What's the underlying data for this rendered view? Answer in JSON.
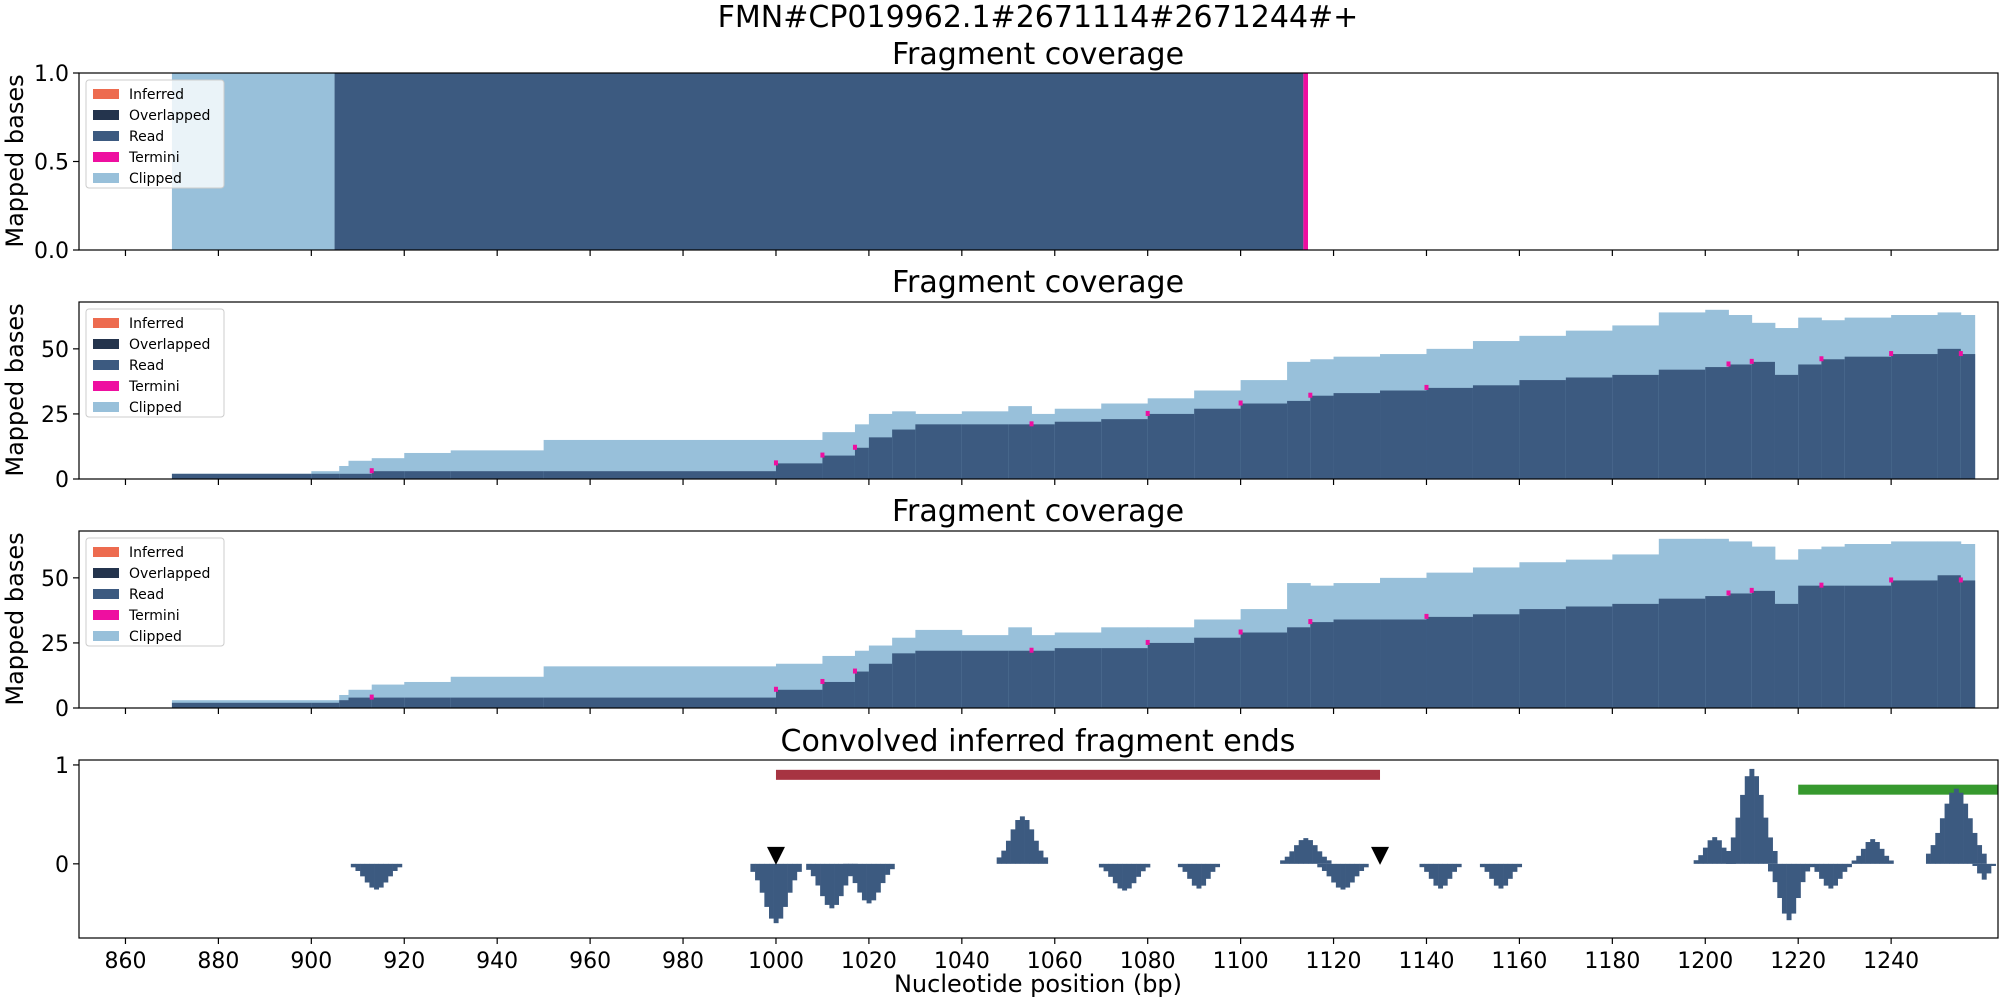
{
  "figure": {
    "suptitle": "FMN#CP019962.1#2671114#2671244#+"
  },
  "colors": {
    "Inferred": "#ed6b4f",
    "Overlapped": "#24344d",
    "Read": "#3c5a80",
    "Termini": "#ee0fa0",
    "Clipped": "#98c0da",
    "fragment_bar": "#a73442",
    "window_bar": "#36992e",
    "ends_bars": "#3c5a80",
    "marker": "#000000"
  },
  "chart_data": [
    {
      "type": "area",
      "title": "Fragment coverage",
      "ylabel": "Mapped bases",
      "xlim": [
        850,
        1263
      ],
      "ylim": [
        0,
        1.0
      ],
      "yticks": [
        "0.0",
        "0.5",
        "1.0"
      ],
      "ytick_values": [
        0,
        0.5,
        1.0
      ],
      "legend": [
        "Inferred",
        "Overlapped",
        "Read",
        "Termini",
        "Clipped"
      ],
      "legend_position": "upper-left",
      "series": [
        {
          "name": "Clipped",
          "segments": [
            [
              870,
              905,
              1.0
            ]
          ]
        },
        {
          "name": "Read",
          "segments": [
            [
              905,
              1113.5,
              1.0
            ]
          ]
        },
        {
          "name": "Termini",
          "segments": [
            [
              1113.5,
              1114.5,
              1.0
            ]
          ]
        }
      ]
    },
    {
      "type": "area",
      "title": "Fragment coverage",
      "ylabel": "Mapped bases",
      "xlim": [
        850,
        1263
      ],
      "ylim": [
        0,
        68
      ],
      "yticks": [
        "0",
        "25",
        "50"
      ],
      "ytick_values": [
        0,
        25,
        50
      ],
      "legend": [
        "Inferred",
        "Overlapped",
        "Read",
        "Termini",
        "Clipped"
      ],
      "legend_position": "upper-left",
      "x": [
        870,
        900,
        906,
        908,
        913,
        920,
        930,
        950,
        1000,
        1010,
        1017,
        1020,
        1025,
        1030,
        1040,
        1050,
        1055,
        1060,
        1070,
        1080,
        1090,
        1100,
        1110,
        1115,
        1120,
        1130,
        1140,
        1150,
        1160,
        1170,
        1180,
        1190,
        1200,
        1205,
        1210,
        1215,
        1220,
        1225,
        1230,
        1240,
        1250,
        1255,
        1258
      ],
      "read": [
        2,
        2,
        2,
        2,
        3,
        3,
        3,
        3,
        6,
        9,
        12,
        16,
        19,
        21,
        21,
        21,
        21,
        22,
        23,
        25,
        27,
        29,
        30,
        32,
        33,
        34,
        35,
        36,
        38,
        39,
        40,
        42,
        43,
        44,
        45,
        40,
        44,
        46,
        47,
        48,
        50,
        48,
        48
      ],
      "total": [
        2,
        3,
        5,
        7,
        8,
        10,
        11,
        15,
        15,
        18,
        21,
        25,
        26,
        25,
        26,
        28,
        25,
        27,
        29,
        31,
        34,
        38,
        45,
        46,
        47,
        48,
        50,
        53,
        55,
        57,
        59,
        64,
        65,
        63,
        60,
        58,
        62,
        61,
        62,
        63,
        64,
        63,
        62
      ],
      "termini": [
        913,
        1000,
        1010,
        1017,
        1055,
        1080,
        1100,
        1115,
        1140,
        1205,
        1210,
        1225,
        1240,
        1255
      ]
    },
    {
      "type": "area",
      "title": "Fragment coverage",
      "ylabel": "Mapped bases",
      "xlim": [
        850,
        1263
      ],
      "ylim": [
        0,
        68
      ],
      "yticks": [
        "0",
        "25",
        "50"
      ],
      "ytick_values": [
        0,
        25,
        50
      ],
      "legend": [
        "Inferred",
        "Overlapped",
        "Read",
        "Termini",
        "Clipped"
      ],
      "legend_position": "upper-left",
      "x": [
        870,
        900,
        906,
        908,
        913,
        920,
        930,
        950,
        1000,
        1010,
        1017,
        1020,
        1025,
        1030,
        1040,
        1050,
        1055,
        1060,
        1070,
        1080,
        1090,
        1100,
        1110,
        1115,
        1120,
        1130,
        1140,
        1150,
        1160,
        1170,
        1180,
        1190,
        1200,
        1205,
        1210,
        1215,
        1220,
        1225,
        1230,
        1240,
        1250,
        1255,
        1258
      ],
      "read": [
        2,
        2,
        3,
        4,
        4,
        4,
        4,
        4,
        7,
        10,
        14,
        17,
        21,
        22,
        22,
        22,
        22,
        23,
        23,
        25,
        27,
        29,
        31,
        33,
        34,
        34,
        35,
        36,
        38,
        39,
        40,
        42,
        43,
        44,
        45,
        40,
        47,
        47,
        47,
        49,
        51,
        49,
        48
      ],
      "total": [
        3,
        3,
        5,
        7,
        9,
        10,
        12,
        16,
        17,
        20,
        22,
        24,
        27,
        30,
        28,
        31,
        28,
        29,
        31,
        31,
        34,
        38,
        48,
        47,
        48,
        50,
        52,
        54,
        56,
        57,
        59,
        65,
        65,
        64,
        62,
        57,
        61,
        62,
        63,
        64,
        64,
        63,
        62
      ],
      "termini": [
        913,
        1000,
        1010,
        1017,
        1055,
        1080,
        1100,
        1115,
        1140,
        1205,
        1210,
        1225,
        1240,
        1255
      ]
    },
    {
      "type": "bar",
      "title": "Convolved inferred fragment ends",
      "xlabel": "Nucleotide position (bp)",
      "xlim": [
        850,
        1263
      ],
      "ylim": [
        -0.75,
        1.05
      ],
      "yticks": [
        "0",
        "1"
      ],
      "ytick_values": [
        0,
        1
      ],
      "xticks": [
        "860",
        "880",
        "900",
        "920",
        "940",
        "960",
        "980",
        "1000",
        "1020",
        "1040",
        "1060",
        "1080",
        "1100",
        "1120",
        "1140",
        "1160",
        "1180",
        "1200",
        "1220",
        "1240"
      ],
      "xtick_values": [
        860,
        880,
        900,
        920,
        940,
        960,
        980,
        1000,
        1020,
        1040,
        1060,
        1080,
        1100,
        1120,
        1140,
        1160,
        1180,
        1200,
        1220,
        1240
      ],
      "peaks": [
        {
          "center": 914,
          "height": -0.26,
          "halfwidth": 5
        },
        {
          "center": 1000,
          "height": -0.6,
          "halfwidth": 5
        },
        {
          "center": 1012,
          "height": -0.45,
          "halfwidth": 5
        },
        {
          "center": 1020,
          "height": -0.4,
          "halfwidth": 5
        },
        {
          "center": 1053,
          "height": 0.48,
          "halfwidth": 5
        },
        {
          "center": 1075,
          "height": -0.27,
          "halfwidth": 5
        },
        {
          "center": 1091,
          "height": -0.25,
          "halfwidth": 4
        },
        {
          "center": 1114,
          "height": 0.26,
          "halfwidth": 5
        },
        {
          "center": 1122,
          "height": -0.26,
          "halfwidth": 5
        },
        {
          "center": 1143,
          "height": -0.25,
          "halfwidth": 4
        },
        {
          "center": 1156,
          "height": -0.25,
          "halfwidth": 4
        },
        {
          "center": 1202,
          "height": 0.27,
          "halfwidth": 4
        },
        {
          "center": 1210,
          "height": 0.96,
          "halfwidth": 5
        },
        {
          "center": 1218,
          "height": -0.57,
          "halfwidth": 4
        },
        {
          "center": 1227,
          "height": -0.25,
          "halfwidth": 4
        },
        {
          "center": 1236,
          "height": 0.25,
          "halfwidth": 4
        },
        {
          "center": 1254,
          "height": 0.76,
          "halfwidth": 6
        },
        {
          "center": 1260,
          "height": -0.16,
          "halfwidth": 2
        }
      ],
      "fragment_span": [
        1000,
        1130
      ],
      "fragment_span_y": 0.9,
      "window_span": [
        1220,
        1263
      ],
      "window_span_y": 0.75,
      "markers_x": [
        1000,
        1130
      ],
      "markers_y": 0.08
    }
  ]
}
